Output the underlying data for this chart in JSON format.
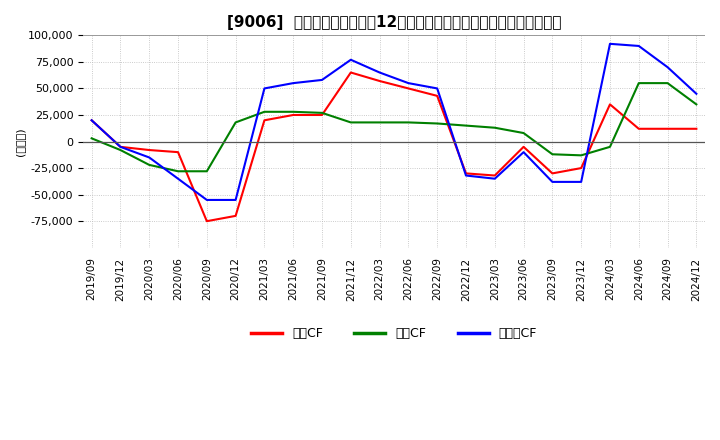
{
  "title": "[9006]  キャッシュフローの12か月移動合計の対前年同期増減額の推移",
  "ylabel": "(百万円)",
  "ylim": [
    -100000,
    100000
  ],
  "yticks": [
    -75000,
    -50000,
    -25000,
    0,
    25000,
    50000,
    75000,
    100000
  ],
  "x_labels": [
    "2019/09",
    "2019/12",
    "2020/03",
    "2020/06",
    "2020/09",
    "2020/12",
    "2021/03",
    "2021/06",
    "2021/09",
    "2021/12",
    "2022/03",
    "2022/06",
    "2022/09",
    "2022/12",
    "2023/03",
    "2023/06",
    "2023/09",
    "2023/12",
    "2024/03",
    "2024/06",
    "2024/09",
    "2024/12"
  ],
  "series": {
    "営業CF": {
      "color": "#ff0000",
      "values": [
        20000,
        -5000,
        -8000,
        -10000,
        -75000,
        -70000,
        20000,
        25000,
        25000,
        65000,
        57000,
        50000,
        43000,
        -30000,
        -32000,
        -5000,
        -30000,
        -25000,
        35000,
        12000,
        12000,
        12000
      ]
    },
    "投資CF": {
      "color": "#008000",
      "values": [
        3000,
        -8000,
        -22000,
        -28000,
        -28000,
        18000,
        28000,
        28000,
        27000,
        18000,
        18000,
        18000,
        17000,
        15000,
        13000,
        8000,
        -12000,
        -13000,
        -5000,
        55000,
        55000,
        35000
      ]
    },
    "フリーCF": {
      "color": "#0000ff",
      "values": [
        20000,
        -5000,
        -15000,
        -35000,
        -55000,
        -55000,
        50000,
        55000,
        58000,
        77000,
        65000,
        55000,
        50000,
        -32000,
        -35000,
        -10000,
        -38000,
        -38000,
        92000,
        90000,
        70000,
        45000
      ]
    }
  },
  "legend_labels": [
    "営業CF",
    "投資CF",
    "フリーCF"
  ],
  "background_color": "#ffffff",
  "grid_color": "#bbbbbb",
  "grid_style": ":"
}
